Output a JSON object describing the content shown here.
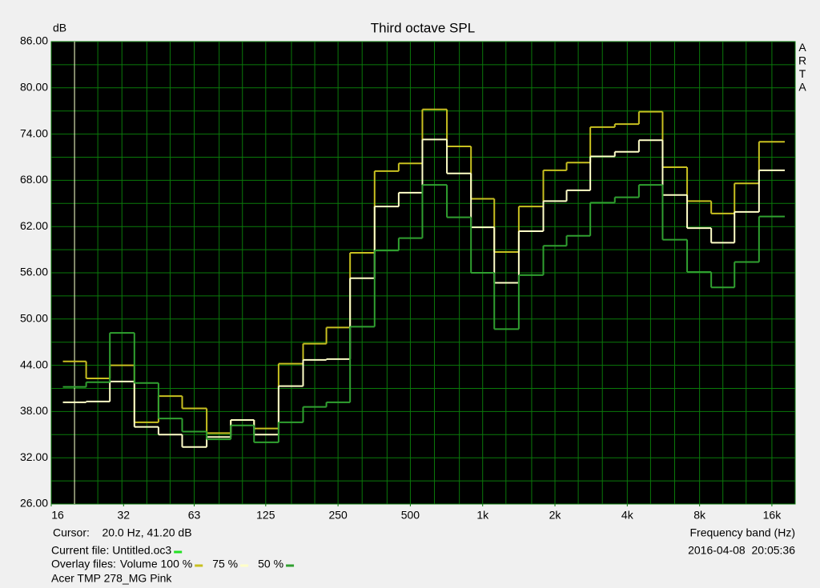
{
  "chart_data": {
    "type": "step",
    "title": "Third octave SPL",
    "y_label": "dB",
    "x_label": "Frequency band (Hz)",
    "watermark": "ARTA",
    "xscale": "log",
    "xlim": [
      16,
      20000
    ],
    "xticks": [
      16,
      32,
      63,
      125,
      250,
      500,
      {
        "value": 1000,
        "label": "1k"
      },
      {
        "value": 2000,
        "label": "2k"
      },
      {
        "value": 4000,
        "label": "4k"
      },
      {
        "value": 8000,
        "label": "8k"
      },
      {
        "value": 16000,
        "label": "16k"
      }
    ],
    "ylim": [
      26,
      86
    ],
    "yticks": [
      {
        "value": 26,
        "label": "26.00"
      },
      {
        "value": 32,
        "label": "32.00"
      },
      {
        "value": 38,
        "label": "38.00"
      },
      {
        "value": 44,
        "label": "44.00"
      },
      {
        "value": 50,
        "label": "50.00"
      },
      {
        "value": 56,
        "label": "56.00"
      },
      {
        "value": 62,
        "label": "62.00"
      },
      {
        "value": 68,
        "label": "68.00"
      },
      {
        "value": 74,
        "label": "74.00"
      },
      {
        "value": 80,
        "label": "80.00"
      },
      {
        "value": 86,
        "label": "86.00"
      }
    ],
    "grid": true,
    "ygrid_step": 3,
    "x": [
      20,
      25,
      31.5,
      40,
      50,
      63,
      80,
      100,
      125,
      160,
      200,
      250,
      315,
      400,
      500,
      630,
      800,
      1000,
      1250,
      1600,
      2000,
      2500,
      3150,
      4000,
      5000,
      6300,
      8000,
      10000,
      12500,
      16000
    ],
    "cursor": {
      "label": "Cursor:    20.0 Hz, 41.20 dB",
      "x": 20
    },
    "current_file": {
      "label": "Current file: Untitled.oc3",
      "color": "#22e022"
    },
    "overlay_label": "Overlay files:",
    "series": [
      {
        "name": "Volume 100 %",
        "color": "#c8c020",
        "values": [
          44.5,
          42.3,
          44.0,
          36.6,
          40.0,
          38.4,
          35.2,
          36.9,
          35.8,
          44.2,
          46.8,
          48.9,
          58.6,
          69.2,
          70.2,
          77.2,
          72.4,
          65.6,
          58.7,
          64.6,
          69.3,
          70.3,
          74.9,
          75.3,
          76.9,
          69.7,
          65.3,
          63.7,
          67.6,
          73.0
        ]
      },
      {
        "name": "75 %",
        "color": "#ffffc8",
        "values": [
          39.2,
          39.3,
          41.9,
          36.0,
          35.0,
          33.4,
          34.7,
          36.9,
          35.0,
          41.3,
          44.7,
          44.8,
          55.3,
          64.6,
          66.4,
          73.3,
          68.9,
          61.9,
          54.7,
          61.4,
          65.3,
          66.7,
          71.1,
          71.7,
          73.2,
          66.1,
          61.8,
          59.9,
          63.9,
          69.3
        ]
      },
      {
        "name": "50 %",
        "color": "#30a030",
        "values": [
          41.2,
          41.8,
          48.2,
          41.7,
          37.1,
          35.4,
          34.4,
          36.2,
          34.0,
          36.6,
          38.6,
          39.2,
          49.0,
          58.9,
          60.5,
          67.4,
          63.2,
          56.0,
          48.7,
          55.7,
          59.5,
          60.8,
          65.1,
          65.8,
          67.4,
          60.3,
          56.1,
          54.1,
          57.4,
          63.3
        ]
      }
    ],
    "timestamp": "2016-04-08  20:05:36",
    "note": "Acer TMP 278_MG Pink"
  }
}
